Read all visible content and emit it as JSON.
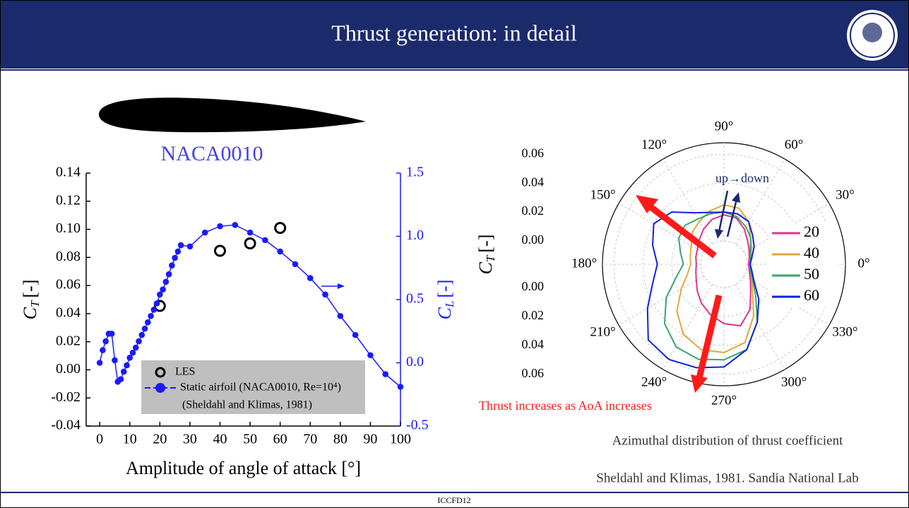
{
  "slide": {
    "title": "Thrust generation: in detail",
    "airfoil_label": "NACA0010",
    "caption": "Azimuthal distribution of thrust coefficient",
    "source": "Sheldahl and Klimas, 1981. Sandia National Lab",
    "footer": "ICCFD12"
  },
  "chart_data": [
    {
      "type": "combo",
      "xlabel": "Amplitude of angle of attack [°]",
      "ylabel": {
        "symbol": "C",
        "subscript": "T",
        "unit": "[-]"
      },
      "y2label": {
        "symbol": "C",
        "subscript": "L",
        "unit": "[-]"
      },
      "xlim": [
        -4.5,
        100
      ],
      "xticks": [
        0,
        10,
        20,
        30,
        40,
        50,
        60,
        70,
        80,
        90,
        100
      ],
      "ylim": [
        -0.04,
        0.14
      ],
      "yticks": [
        -0.04,
        -0.02,
        {
          "value": 0,
          "label": "0.00"
        },
        0.02,
        0.04,
        0.06,
        0.08,
        {
          "value": 0.1,
          "label": "0.10"
        },
        0.12,
        0.14
      ],
      "y2lim": [
        -0.5,
        1.5
      ],
      "y2ticks": [
        -0.5,
        {
          "value": 0,
          "label": "0.0"
        },
        0.5,
        {
          "value": 1,
          "label": "1.0"
        },
        1.5
      ],
      "series": [
        {
          "name": "LES",
          "type": "scatter",
          "color": "#000000",
          "x": [
            20,
            40,
            50,
            60
          ],
          "values": [
            0.0455,
            0.0847,
            0.09,
            0.101
          ]
        },
        {
          "name": "Static airfoil (NACA0010, Re=10⁴)",
          "type": "line",
          "axis": "y2",
          "color": "#1a1aff",
          "x": [
            0,
            1,
            2,
            3,
            4,
            5,
            6,
            7,
            8,
            9,
            10,
            11,
            12,
            13,
            14,
            15,
            16,
            17,
            18,
            19,
            20,
            21,
            22,
            23,
            24,
            25,
            26,
            27,
            30,
            35,
            40,
            45,
            50,
            55,
            60,
            65,
            70,
            75,
            80,
            85,
            90,
            95,
            100
          ],
          "values": [
            0.0,
            0.1,
            0.17,
            0.23,
            0.23,
            0.02,
            -0.15,
            -0.13,
            -0.07,
            -0.02,
            0.04,
            0.08,
            0.12,
            0.17,
            0.22,
            0.27,
            0.32,
            0.37,
            0.42,
            0.47,
            0.54,
            0.58,
            0.64,
            0.7,
            0.77,
            0.83,
            0.88,
            0.93,
            0.92,
            1.03,
            1.08,
            1.09,
            1.03,
            0.97,
            0.88,
            0.78,
            0.67,
            0.54,
            0.37,
            0.22,
            0.06,
            -0.09,
            -0.19
          ]
        }
      ],
      "legend_note": "(Sheldahl and Klimas, 1981)"
    },
    {
      "type": "polar",
      "rlabel": {
        "symbol": "C",
        "subscript": "T",
        "unit": "[-]"
      },
      "rlim": [
        0,
        0.068
      ],
      "rticks": [
        {
          "value": 0,
          "label": "0.00"
        },
        0.02,
        0.04,
        0.06
      ],
      "thetaticks": [
        {
          "value": 0,
          "label": "0°"
        },
        {
          "value": 30,
          "label": "30°"
        },
        {
          "value": 60,
          "label": "60°"
        },
        {
          "value": 90,
          "label": "90°"
        },
        {
          "value": 120,
          "label": "120°"
        },
        {
          "value": 150,
          "label": "150°"
        },
        {
          "value": 180,
          "label": "180°"
        },
        {
          "value": 210,
          "label": "210°"
        },
        {
          "value": 240,
          "label": "240°"
        },
        {
          "value": 270,
          "label": "270°"
        },
        {
          "value": 300,
          "label": "300°"
        },
        {
          "value": 330,
          "label": "330°"
        }
      ],
      "x": [
        0,
        15,
        30,
        45,
        60,
        75,
        90,
        105,
        120,
        135,
        150,
        165,
        180,
        195,
        210,
        225,
        240,
        255,
        270,
        285,
        300,
        315,
        330,
        345
      ],
      "series": [
        {
          "name": "20",
          "color": "#e0338a",
          "values": [
            0.001,
            0.002,
            0.004,
            0.007,
            0.012,
            0.017,
            0.018,
            0.016,
            0.012,
            0.008,
            0.005,
            0.004,
            0.003,
            0.004,
            0.006,
            0.01,
            0.015,
            0.02,
            0.025,
            0.028,
            0.02,
            0.01,
            0.005,
            0.002
          ]
        },
        {
          "name": "40",
          "color": "#e0a83a",
          "values": [
            0.002,
            0.003,
            0.006,
            0.01,
            0.018,
            0.024,
            0.025,
            0.022,
            0.018,
            0.015,
            0.01,
            0.008,
            0.007,
            0.01,
            0.018,
            0.03,
            0.04,
            0.045,
            0.045,
            0.04,
            0.025,
            0.012,
            0.006,
            0.003
          ]
        },
        {
          "name": "50",
          "color": "#3aa66a",
          "values": [
            0.002,
            0.003,
            0.005,
            0.01,
            0.014,
            0.018,
            0.02,
            0.02,
            0.02,
            0.022,
            0.02,
            0.015,
            0.012,
            0.018,
            0.03,
            0.042,
            0.05,
            0.052,
            0.05,
            0.045,
            0.03,
            0.015,
            0.007,
            0.003
          ]
        },
        {
          "name": "60",
          "color": "#1020e0",
          "values": [
            0.002,
            0.004,
            0.008,
            0.012,
            0.018,
            0.02,
            0.02,
            0.021,
            0.025,
            0.035,
            0.04,
            0.035,
            0.03,
            0.035,
            0.045,
            0.058,
            0.06,
            0.058,
            0.055,
            0.045,
            0.03,
            0.018,
            0.008,
            0.004
          ]
        }
      ],
      "annotations": [
        "up→down",
        "Thrust increases as AoA increases"
      ]
    }
  ]
}
